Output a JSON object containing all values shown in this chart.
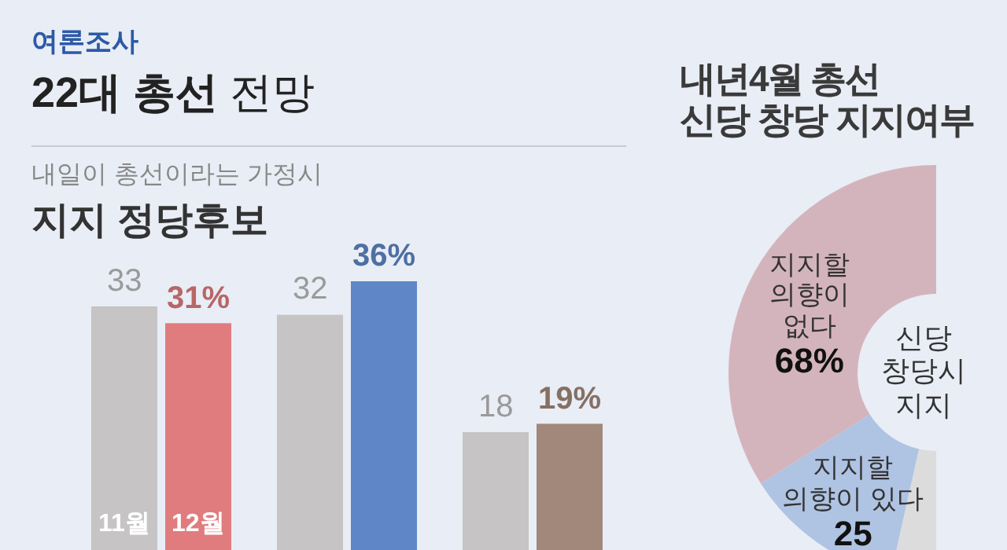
{
  "chart_data": [
    {
      "type": "bar",
      "annotations": [
        "여론조사",
        "22대 총선 전망"
      ],
      "subtitle": "내일이 총선이라는 가정시",
      "title": "지지 정당후보",
      "categories": [
        null,
        null,
        null
      ],
      "series": [
        {
          "name": "11월",
          "colors": [
            "#c6c4c4",
            "#c6c4c4",
            "#c6c4c4"
          ],
          "values": [
            33,
            32,
            18
          ],
          "value_labels": [
            "33",
            "32",
            "18"
          ]
        },
        {
          "name": "12월",
          "colors": [
            "#e07c7e",
            "#5f87c7",
            "#a2887a"
          ],
          "values": [
            31,
            36,
            19
          ],
          "value_labels": [
            "31%",
            "36%",
            "19%"
          ]
        }
      ]
    },
    {
      "type": "donut",
      "title": "내년4월 총선 신당 창당 지지여부",
      "categories": [
        "지지할 의향이 없다",
        "지지할 의향이 있다",
        null
      ],
      "values": [
        68,
        25,
        7
      ],
      "colors": [
        "#d4b4bc",
        "#afc3e3",
        "#dcdcdc"
      ],
      "value_labels": [
        "68%",
        "25",
        null
      ],
      "annotations": [
        "신당 창당시 지지"
      ]
    }
  ]
}
